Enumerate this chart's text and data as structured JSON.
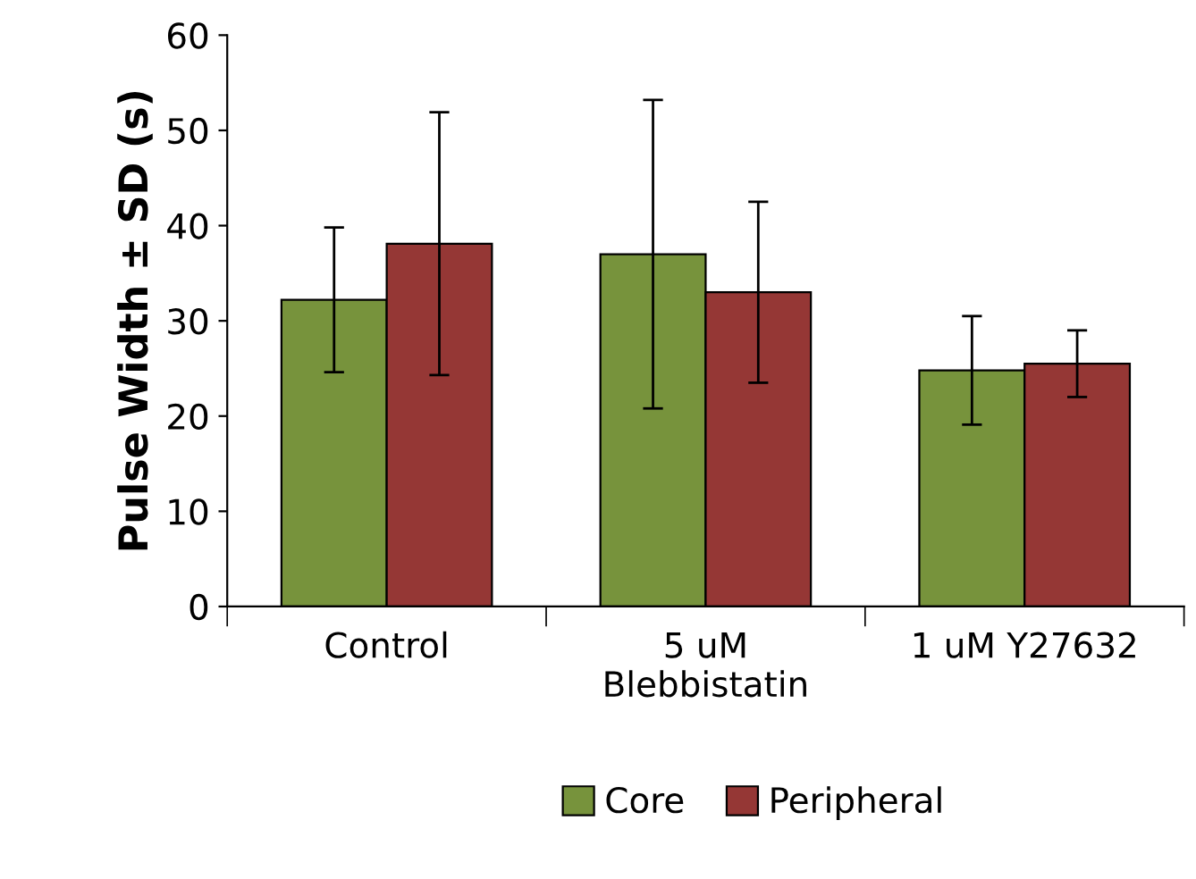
{
  "chart_data": {
    "type": "bar",
    "ylabel": "Pulse Width ± SD (s)",
    "categories": [
      "Control",
      "5 uM\nBlebbistatin",
      "1 uM Y27632"
    ],
    "series": [
      {
        "name": "Core",
        "color": "#77933c",
        "values": [
          32.2,
          37.0,
          24.8
        ],
        "errors": [
          7.6,
          16.2,
          5.7
        ]
      },
      {
        "name": "Peripheral",
        "color": "#953735",
        "values": [
          38.1,
          33.0,
          25.5
        ],
        "errors": [
          13.8,
          9.5,
          3.5
        ]
      }
    ],
    "ylim": [
      0,
      60
    ],
    "yticks": [
      0,
      10,
      20,
      30,
      40,
      50,
      60
    ],
    "grid": false,
    "legend": "bottom"
  }
}
